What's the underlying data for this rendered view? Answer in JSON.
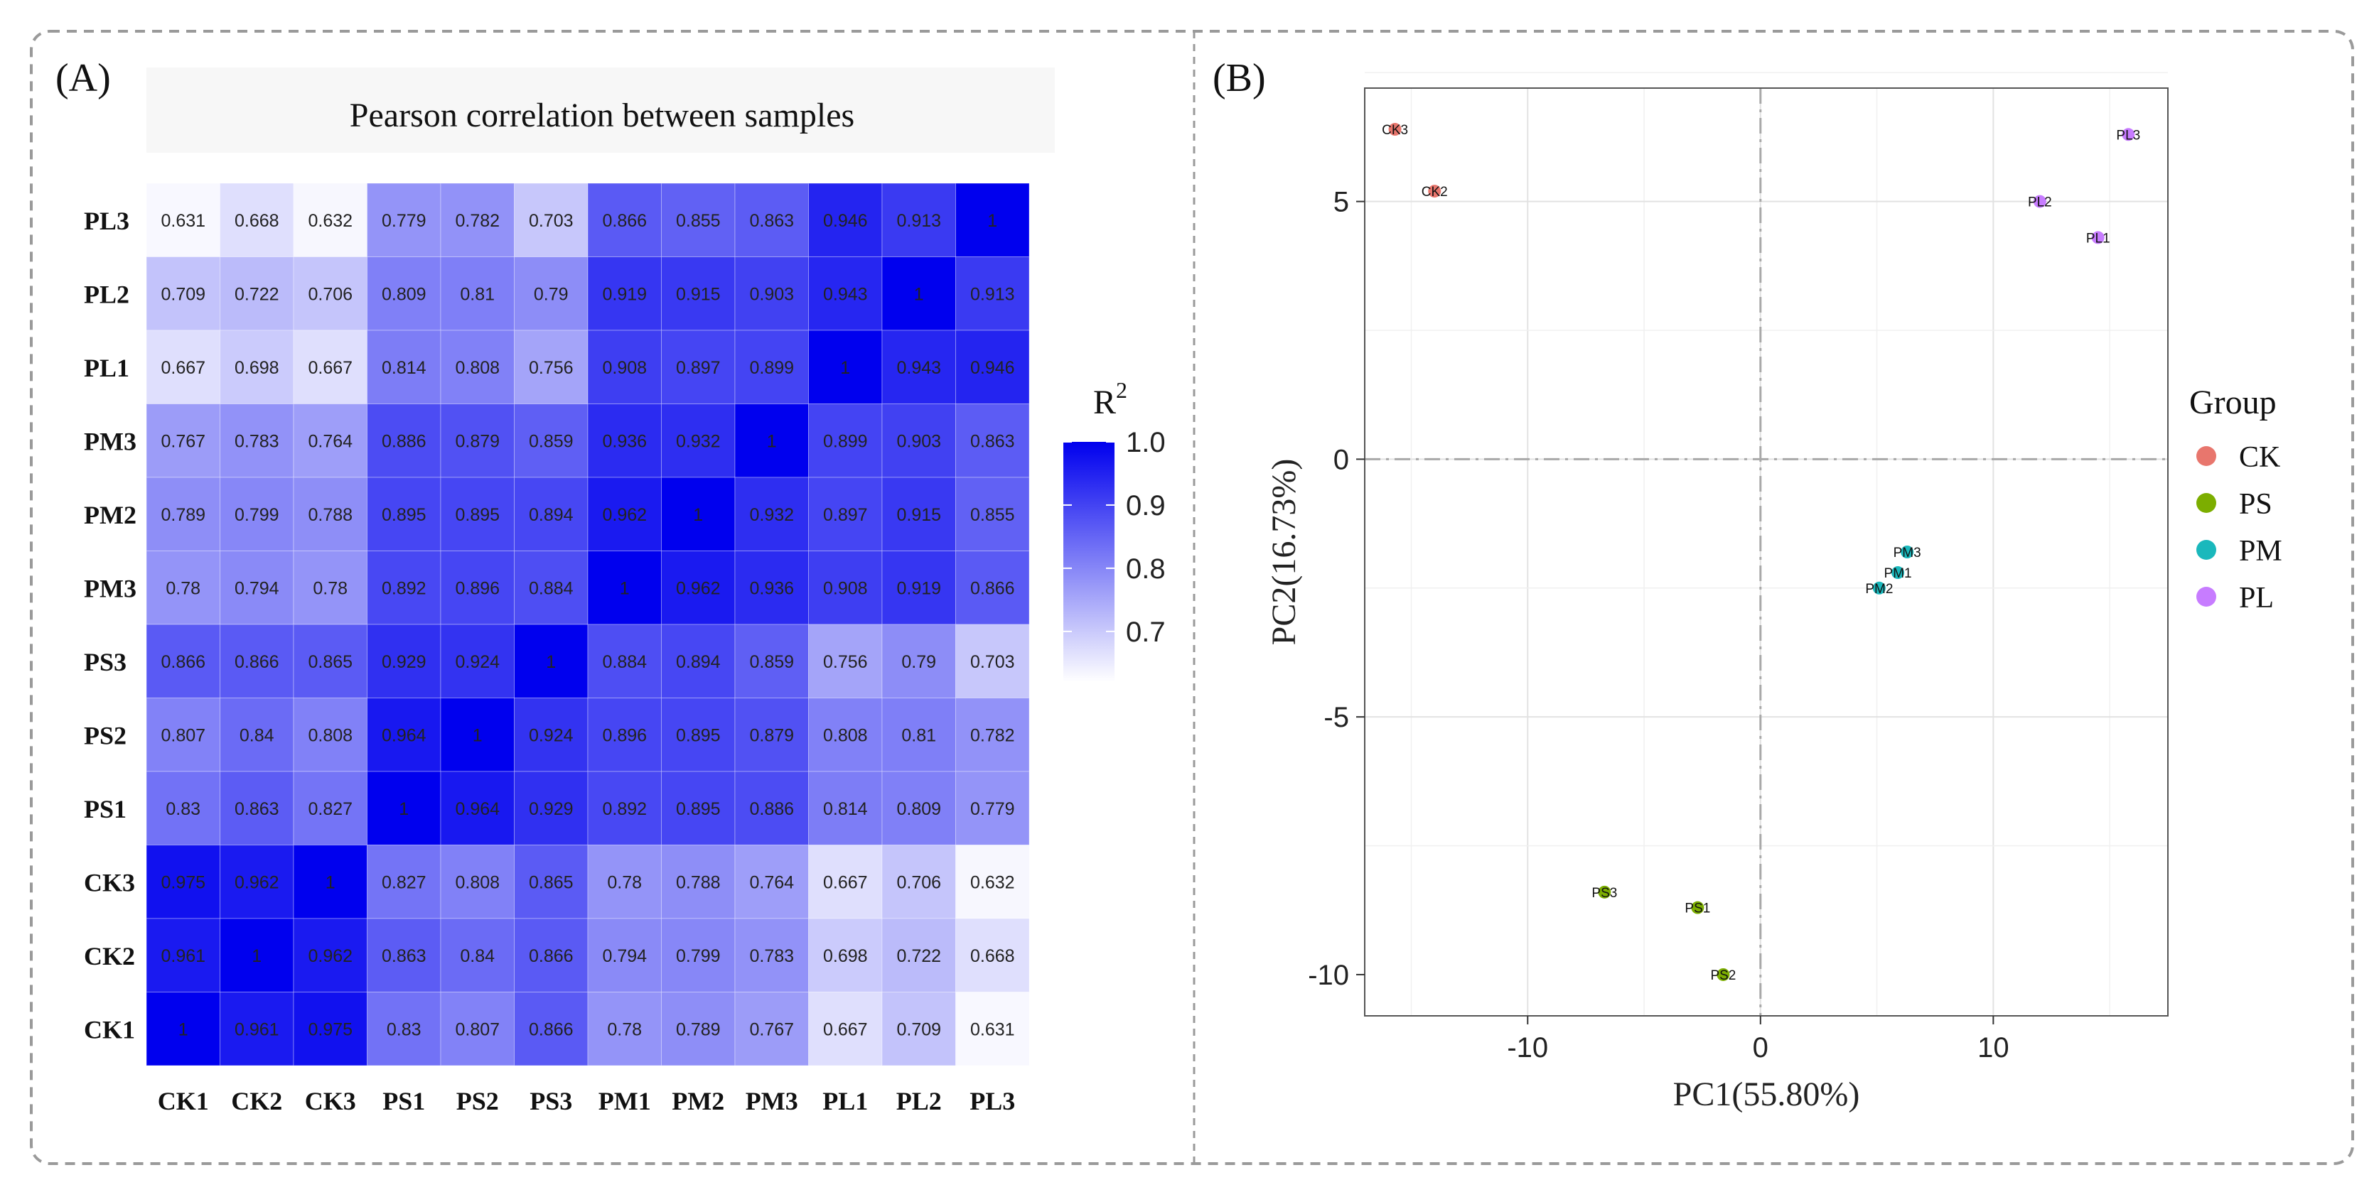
{
  "panels": {
    "a_label": "(A)",
    "b_label": "(B)"
  },
  "chart_data": [
    {
      "type": "heatmap",
      "title": "Pearson correlation between samples",
      "columns": [
        "CK1",
        "CK2",
        "CK3",
        "PS1",
        "PS2",
        "PS3",
        "PM1",
        "PM2",
        "PM3",
        "PL1",
        "PL2",
        "PL3"
      ],
      "rows": [
        "PL3",
        "PL2",
        "PL1",
        "PM3",
        "PM2",
        "PM3",
        "PS3",
        "PS2",
        "PS1",
        "CK3",
        "CK2",
        "CK1"
      ],
      "cells": [
        [
          "0.631",
          "0.668",
          "0.632",
          "0.779",
          "0.782",
          "0.703",
          "0.866",
          "0.855",
          "0.863",
          "0.946",
          "0.913",
          "1"
        ],
        [
          "0.709",
          "0.722",
          "0.706",
          "0.809",
          "0.81",
          "0.79",
          "0.919",
          "0.915",
          "0.903",
          "0.943",
          "1",
          "0.913"
        ],
        [
          "0.667",
          "0.698",
          "0.667",
          "0.814",
          "0.808",
          "0.756",
          "0.908",
          "0.897",
          "0.899",
          "1",
          "0.943",
          "0.946"
        ],
        [
          "0.767",
          "0.783",
          "0.764",
          "0.886",
          "0.879",
          "0.859",
          "0.936",
          "0.932",
          "1",
          "0.899",
          "0.903",
          "0.863"
        ],
        [
          "0.789",
          "0.799",
          "0.788",
          "0.895",
          "0.895",
          "0.894",
          "0.962",
          "1",
          "0.932",
          "0.897",
          "0.915",
          "0.855"
        ],
        [
          "0.78",
          "0.794",
          "0.78",
          "0.892",
          "0.896",
          "0.884",
          "1",
          "0.962",
          "0.936",
          "0.908",
          "0.919",
          "0.866"
        ],
        [
          "0.866",
          "0.866",
          "0.865",
          "0.929",
          "0.924",
          "1",
          "0.884",
          "0.894",
          "0.859",
          "0.756",
          "0.79",
          "0.703"
        ],
        [
          "0.807",
          "0.84",
          "0.808",
          "0.964",
          "1",
          "0.924",
          "0.896",
          "0.895",
          "0.879",
          "0.808",
          "0.81",
          "0.782"
        ],
        [
          "0.83",
          "0.863",
          "0.827",
          "1",
          "0.964",
          "0.929",
          "0.892",
          "0.895",
          "0.886",
          "0.814",
          "0.809",
          "0.779"
        ],
        [
          "0.975",
          "0.962",
          "1",
          "0.827",
          "0.808",
          "0.865",
          "0.78",
          "0.788",
          "0.764",
          "0.667",
          "0.706",
          "0.632"
        ],
        [
          "0.961",
          "1",
          "0.962",
          "0.863",
          "0.84",
          "0.866",
          "0.794",
          "0.799",
          "0.783",
          "0.698",
          "0.722",
          "0.668"
        ],
        [
          "1",
          "0.961",
          "0.975",
          "0.83",
          "0.807",
          "0.866",
          "0.78",
          "0.789",
          "0.767",
          "0.667",
          "0.709",
          "0.631"
        ]
      ],
      "colorbar": {
        "title": "R",
        "title_sup": "2",
        "ticks": [
          "1.0",
          "0.9",
          "0.8",
          "0.7"
        ],
        "tick_values": [
          1.0,
          0.9,
          0.8,
          0.7
        ],
        "range": [
          0.62,
          1.0
        ],
        "low_color": "#ffffff",
        "high_color": "#0000ee"
      }
    },
    {
      "type": "scatter",
      "xlabel": "PC1(55.80%)",
      "ylabel": "PC2(16.73%)",
      "xlim": [
        -17,
        17.5
      ],
      "ylim": [
        -10.8,
        7.2
      ],
      "xticks": [
        -10,
        0,
        10
      ],
      "yticks": [
        5,
        0,
        -5,
        -10
      ],
      "xtick_labels": [
        "-10",
        "0",
        "10"
      ],
      "ytick_labels": [
        "5",
        "0",
        "-5",
        "-10"
      ],
      "legend": {
        "title": "Group",
        "position": "right",
        "entries": [
          {
            "label": "CK",
            "color": "#e8766d"
          },
          {
            "label": "PS",
            "color": "#7cae00"
          },
          {
            "label": "PM",
            "color": "#1ab8bc"
          },
          {
            "label": "PL",
            "color": "#c77cff"
          }
        ]
      },
      "points": [
        {
          "label": "CK3",
          "group": "CK",
          "x": -15.7,
          "y": 6.4,
          "color": "#e8766d"
        },
        {
          "label": "CK2",
          "group": "CK",
          "x": -14.0,
          "y": 5.2,
          "color": "#e8766d"
        },
        {
          "label": "PL3",
          "group": "PL",
          "x": 15.8,
          "y": 6.3,
          "color": "#c77cff"
        },
        {
          "label": "PL2",
          "group": "PL",
          "x": 12.0,
          "y": 5.0,
          "color": "#c77cff"
        },
        {
          "label": "PL1",
          "group": "PL",
          "x": 14.5,
          "y": 4.3,
          "color": "#c77cff"
        },
        {
          "label": "PM3",
          "group": "PM",
          "x": 6.3,
          "y": -1.8,
          "color": "#1ab8bc"
        },
        {
          "label": "PM1",
          "group": "PM",
          "x": 5.9,
          "y": -2.2,
          "color": "#1ab8bc"
        },
        {
          "label": "PM2",
          "group": "PM",
          "x": 5.1,
          "y": -2.5,
          "color": "#1ab8bc"
        },
        {
          "label": "PS3",
          "group": "PS",
          "x": -6.7,
          "y": -8.4,
          "color": "#7cae00"
        },
        {
          "label": "PS1",
          "group": "PS",
          "x": -2.7,
          "y": -8.7,
          "color": "#7cae00"
        },
        {
          "label": "PS2",
          "group": "PS",
          "x": -1.6,
          "y": -10.0,
          "color": "#7cae00"
        }
      ]
    }
  ]
}
